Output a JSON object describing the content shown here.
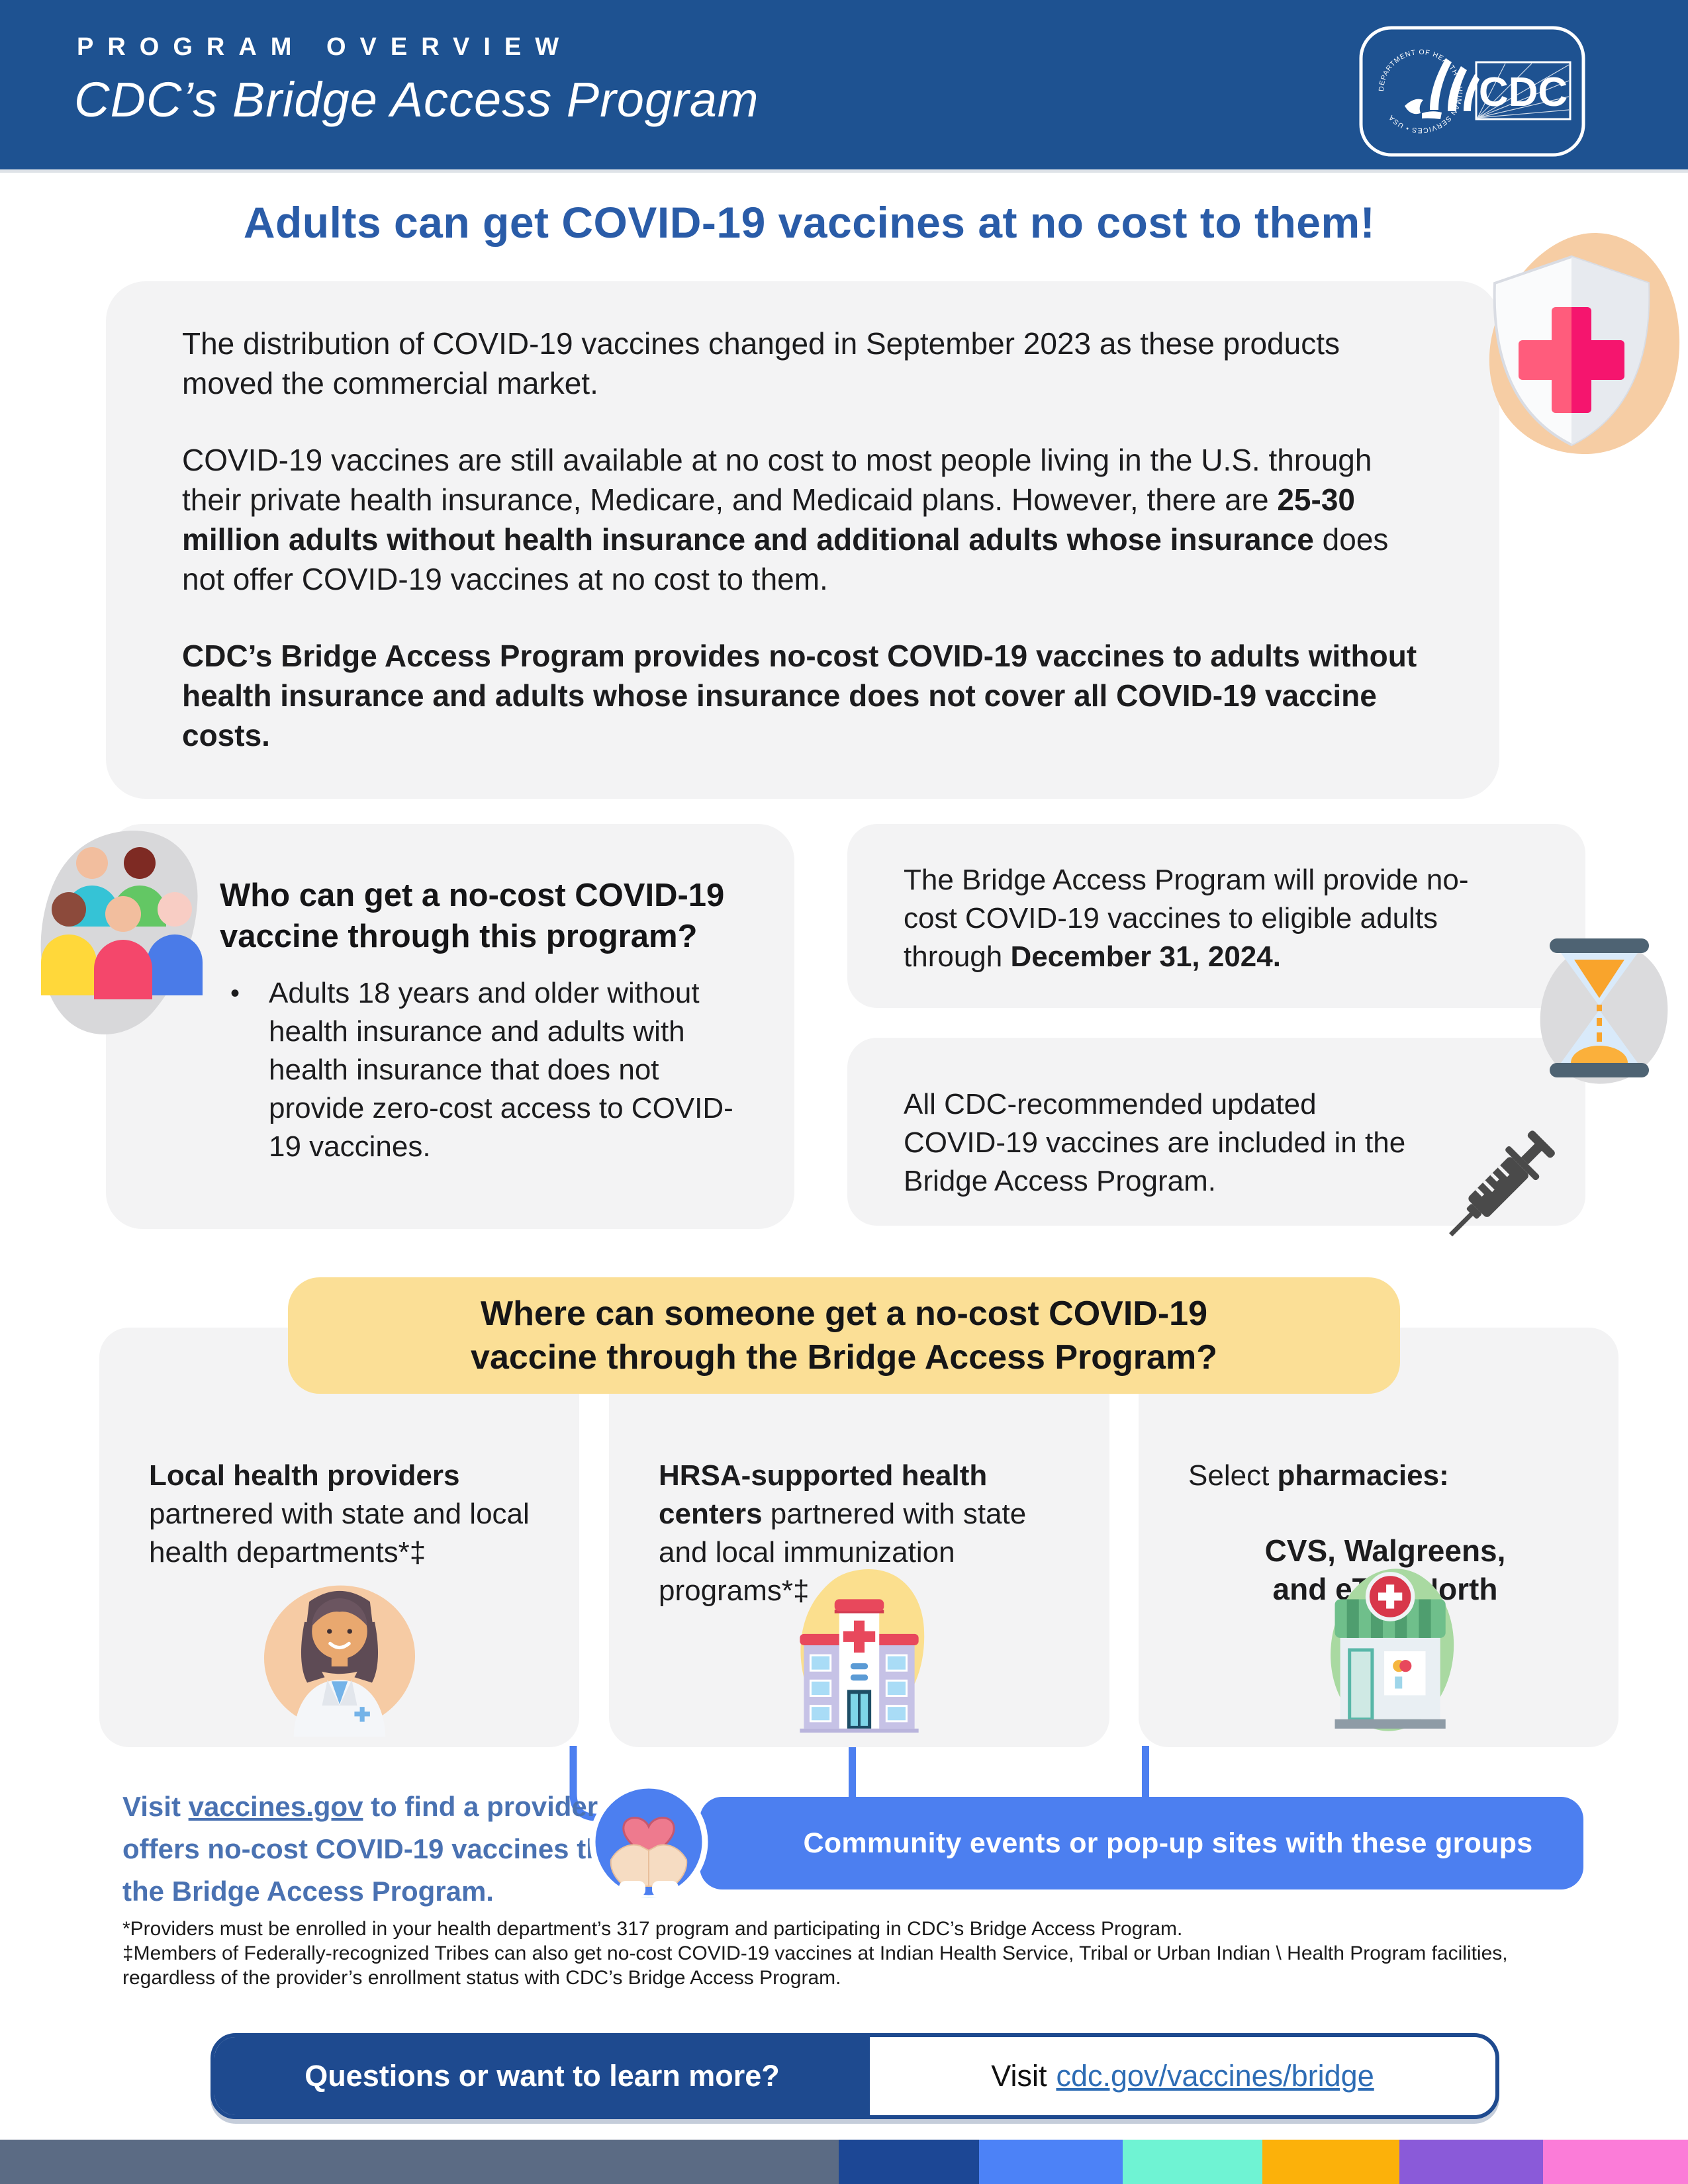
{
  "palette": {
    "header_blue": "#1E5291",
    "title_blue": "#2A5CA8",
    "box_gray": "#F3F3F4",
    "highlight_yellow": "#FBDF96",
    "banner_blue": "#4C7FF0",
    "finder_blue": "#4A72B2",
    "cta_navy": "#1E4A8F",
    "link_blue": "#2E6DB5",
    "stripe": [
      "#5B6B84",
      "#1C4795",
      "#4C82F7",
      "#6FF3D3",
      "#FCB10A",
      "#8A5AD9",
      "#FB7CD8"
    ]
  },
  "header": {
    "kicker": "PROGRAM OVERVIEW",
    "title": "CDC’s Bridge Access Program",
    "logo_text": "CDC",
    "logo_ring_text": "DEPARTMENT OF HEALTH & HUMAN SERVICES • USA"
  },
  "main_title": "Adults can get COVID-19 vaccines at no cost to them!",
  "intro": {
    "p1": [
      {
        "t": "The distribution of COVID-19 vaccines changed in September 2023 as these products moved the commercial market."
      }
    ],
    "p2": [
      {
        "t": "COVID-19 vaccines are still available at no cost to most people living in the U.S. through their private health insurance, Medicare, and Medicaid plans. However, there are "
      },
      {
        "t": "25-30 million adults without health insurance and additional adults whose insurance",
        "b": true
      },
      {
        "t": " does not offer COVID-19 vaccines at no cost to them."
      }
    ],
    "p3": [
      {
        "t": "CDC’s Bridge Access Program provides no-cost COVID-19 vaccines to adults without health insurance and adults whose insurance does not cover all COVID-19 vaccine costs.",
        "b": true
      }
    ]
  },
  "who": {
    "heading": "Who can get a no-cost COVID-19 vaccine through this program?",
    "bullets": [
      "Adults 18 years and older without health insurance and adults with health insurance that does not provide zero-cost access to COVID-19 vaccines."
    ]
  },
  "timeline": {
    "runs": [
      {
        "t": "The Bridge Access Program will provide no-cost COVID-19 vaccines to eligible adults through "
      },
      {
        "t": "December 31, 2024.",
        "b": true
      }
    ]
  },
  "included": {
    "text": "All CDC-recommended updated COVID-19 vaccines are included in the Bridge Access Program."
  },
  "where": {
    "heading": "Where can someone get a no-cost COVID-19 vaccine through the Bridge Access Program?",
    "options": [
      {
        "runs": [
          {
            "t": "Local health providers",
            "b": true
          },
          {
            "t": " partnered with state and local health departments*‡"
          }
        ]
      },
      {
        "runs": [
          {
            "t": "HRSA-supported health centers",
            "b": true
          },
          {
            "t": " partnered with state and local immunization programs*‡"
          }
        ]
      },
      {
        "runs": [
          {
            "t": "Select "
          },
          {
            "t": "pharmacies:",
            "b": true
          }
        ],
        "pharmacies": "CVS, Walgreens, and eTrueNorth"
      }
    ]
  },
  "finder": {
    "runs": [
      {
        "t": "Visit ",
        "b": true
      },
      {
        "t": "vaccines.gov",
        "b": true,
        "u": true
      },
      {
        "t": " to find a provider that offers no-cost COVID-19 vaccines through the Bridge Access Program.",
        "b": true
      }
    ]
  },
  "community_banner": "Community events or pop-up sites with these groups",
  "footnotes": {
    "lines": [
      "*Providers must be enrolled in your health department’s 317 program and participating in CDC’s Bridge Access Program.",
      "‡Members of Federally-recognized Tribes can also get no-cost COVID-19 vaccines at Indian Health Service, Tribal or Urban Indian \\ Health Program facilities,",
      "regardless of the provider’s enrollment status with CDC’s Bridge Access Program."
    ]
  },
  "cta": {
    "question": "Questions or want to learn more?",
    "visit_prefix": "Visit",
    "link_text": "cdc.gov/vaccines/bridge"
  }
}
